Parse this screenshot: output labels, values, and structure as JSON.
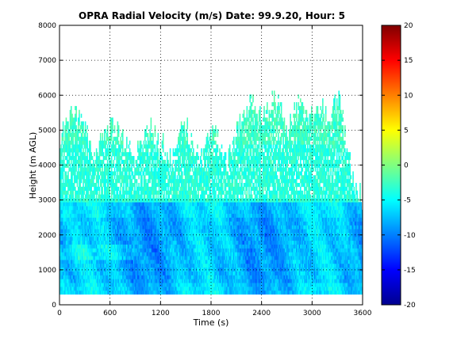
{
  "chart_data": {
    "type": "heatmap",
    "title": "OPRA Radial Velocity (m/s)  Date: 99.9.20, Hour: 5",
    "xlabel": "Time (s)",
    "ylabel": "Height (m AGL)",
    "xlim": [
      0,
      3600
    ],
    "ylim": [
      0,
      8000
    ],
    "x_ticks": [
      "0",
      "600",
      "1200",
      "1800",
      "2400",
      "3000",
      "3600"
    ],
    "y_ticks": [
      "0",
      "1000",
      "2000",
      "3000",
      "4000",
      "5000",
      "6000",
      "7000",
      "8000"
    ],
    "grid": true,
    "colorbar": {
      "colormap": "jet",
      "range": [
        -20,
        20
      ],
      "ticks": [
        "-20",
        "-15",
        "-10",
        "-5",
        "0",
        "5",
        "10",
        "15",
        "20"
      ]
    },
    "data_summary": {
      "min_height": 300,
      "max_height": 6400,
      "typical_velocity_range": [
        -12,
        2
      ]
    },
    "echo_top_profile": {
      "time": [
        0,
        60,
        120,
        180,
        240,
        300,
        360,
        420,
        480,
        540,
        600,
        660,
        720,
        780,
        840,
        900,
        960,
        1020,
        1080,
        1140,
        1200,
        1260,
        1320,
        1380,
        1440,
        1500,
        1560,
        1620,
        1680,
        1740,
        1800,
        1860,
        1920,
        1980,
        2040,
        2100,
        2160,
        2220,
        2280,
        2340,
        2400,
        2460,
        2520,
        2580,
        2640,
        2700,
        2760,
        2820,
        2880,
        2940,
        3000,
        3060,
        3120,
        3180,
        3240,
        3300,
        3360,
        3420,
        3480,
        3540,
        3600
      ],
      "top_height": [
        4800,
        5000,
        5300,
        5400,
        5200,
        5000,
        4600,
        4300,
        4700,
        5000,
        5100,
        5000,
        4800,
        4500,
        4200,
        4300,
        4600,
        4800,
        5000,
        4800,
        4600,
        4300,
        4000,
        4700,
        5200,
        5000,
        4700,
        4400,
        4200,
        4600,
        4900,
        4700,
        4300,
        4000,
        4400,
        4900,
        5300,
        5600,
        5800,
        5500,
        5200,
        5500,
        5800,
        5700,
        5400,
        5000,
        5300,
        5600,
        5500,
        5200,
        5400,
        5600,
        5500,
        5200,
        5600,
        6000,
        5200,
        4400,
        3600,
        3200,
        3000
      ]
    }
  }
}
